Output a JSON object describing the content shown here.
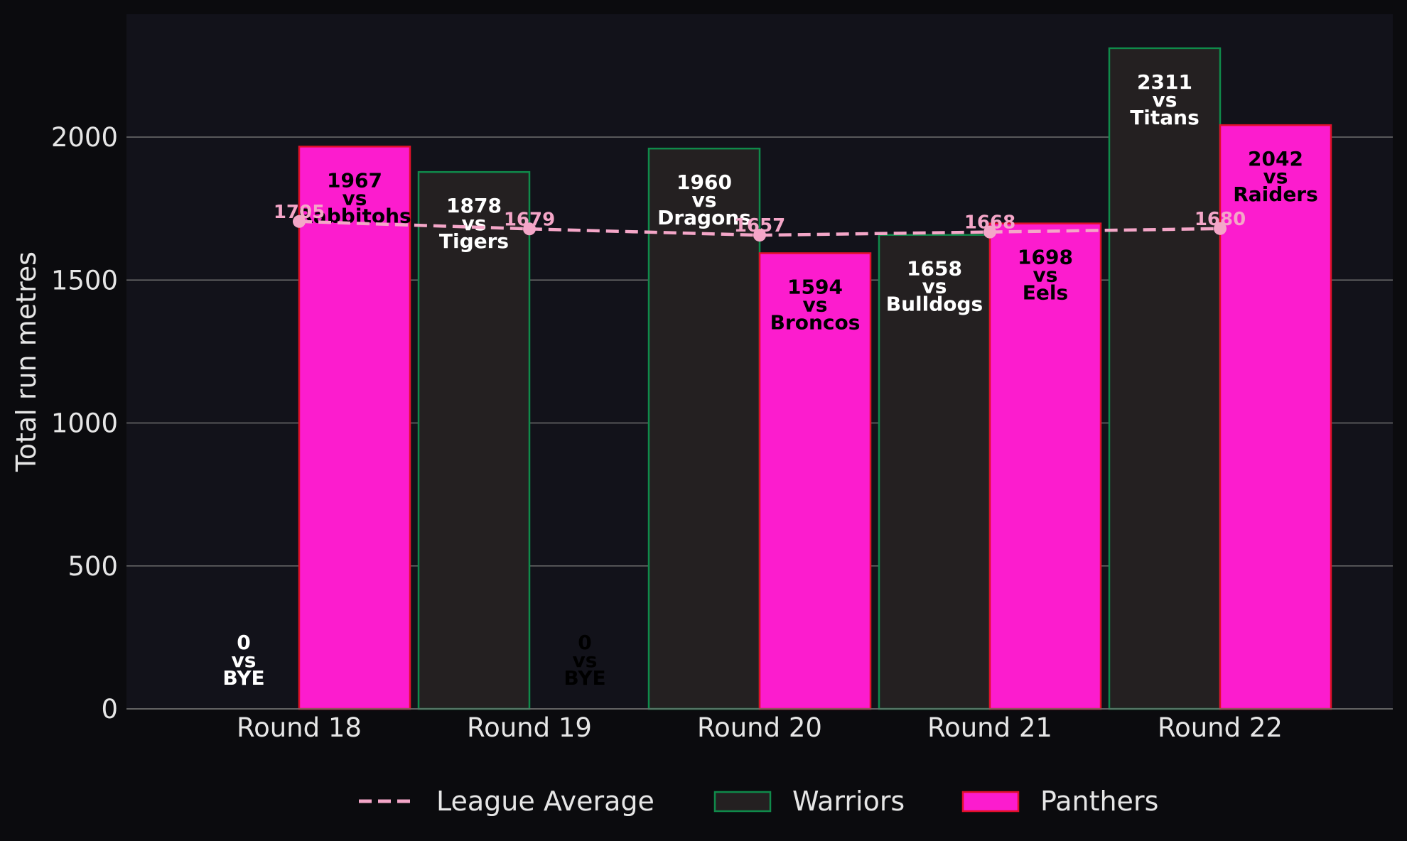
{
  "chart_data": {
    "type": "bar",
    "ylabel": "Total run metres",
    "ylim": [
      0,
      2430
    ],
    "yticks": [
      0,
      500,
      1000,
      1500,
      2000
    ],
    "grid": true,
    "legend_placement": "bottom-center",
    "categories": [
      "Round 18",
      "Round 19",
      "Round 20",
      "Round 21",
      "Round 22"
    ],
    "series": [
      {
        "name": "Warriors",
        "kind": "bar",
        "color": "#242021",
        "edge_color": "#0f8a4a",
        "text_color": "#ffffff",
        "values": [
          0,
          1878,
          1960,
          1658,
          2311
        ],
        "opponents": [
          "BYE",
          "Tigers",
          "Dragons",
          "Bulldogs",
          "Titans"
        ]
      },
      {
        "name": "Panthers",
        "kind": "bar",
        "color": "#fc1cce",
        "edge_color": "#e0102a",
        "text_color": "#000000",
        "values": [
          1967,
          0,
          1594,
          1698,
          2042
        ],
        "opponents": [
          "Rabbitohs",
          "BYE",
          "Broncos",
          "Eels",
          "Raiders"
        ]
      },
      {
        "name": "League Average",
        "kind": "line",
        "style": "dashed",
        "color": "#f4a6c8",
        "values": [
          1705,
          1679,
          1657,
          1668,
          1680
        ]
      }
    ],
    "vs_word": "vs"
  },
  "colors": {
    "page_bg": "#0b0b0e",
    "plot_bg": "#12121a",
    "grid": "#6f6f6f",
    "text": "#e6e6e6"
  }
}
